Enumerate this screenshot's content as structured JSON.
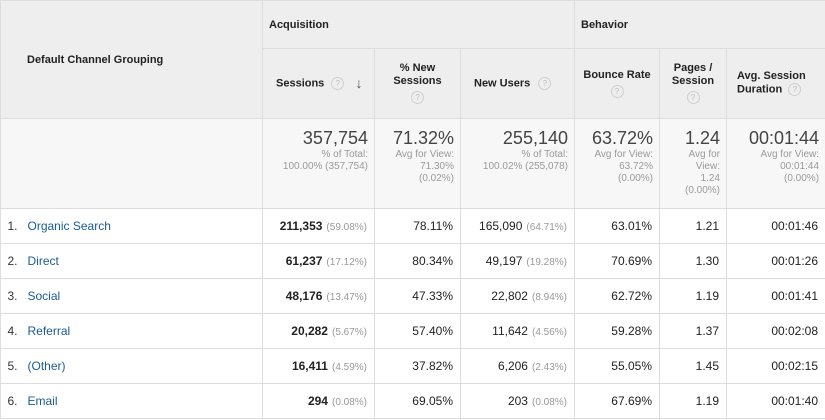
{
  "header": {
    "dimension": "Default Channel Grouping",
    "groups": {
      "acquisition": "Acquisition",
      "behavior": "Behavior"
    },
    "columns": {
      "sessions": "Sessions",
      "pct_new_sessions": "% New Sessions",
      "new_users": "New Users",
      "bounce_rate": "Bounce Rate",
      "pages_session": "Pages / Session",
      "avg_session_duration": "Avg. Session Duration"
    },
    "help_glyph": "?",
    "sort_arrow": "↓"
  },
  "totals": {
    "sessions": {
      "value": "357,754",
      "line1": "% of Total:",
      "line2": "100.00% (357,754)"
    },
    "pct_new_sessions": {
      "value": "71.32%",
      "line1": "Avg for View:",
      "line2": "71.30%",
      "line3": "(0.02%)"
    },
    "new_users": {
      "value": "255,140",
      "line1": "% of Total:",
      "line2": "100.02% (255,078)"
    },
    "bounce_rate": {
      "value": "63.72%",
      "line1": "Avg for View:",
      "line2": "63.72%",
      "line3": "(0.00%)"
    },
    "pages_session": {
      "value": "1.24",
      "line1": "Avg for",
      "line2": "View:",
      "line3": "1.24",
      "line4": "(0.00%)"
    },
    "avg_session_duration": {
      "value": "00:01:44",
      "line1": "Avg for View:",
      "line2": "00:01:44",
      "line3": "(0.00%)"
    }
  },
  "rows": [
    {
      "index": "1.",
      "channel": "Organic Search",
      "sessions": "211,353",
      "sessions_pct": "(59.08%)",
      "pct_new_sessions": "78.11%",
      "new_users": "165,090",
      "new_users_pct": "(64.71%)",
      "bounce_rate": "63.01%",
      "pages_session": "1.21",
      "avg_session_duration": "00:01:46"
    },
    {
      "index": "2.",
      "channel": "Direct",
      "sessions": "61,237",
      "sessions_pct": "(17.12%)",
      "pct_new_sessions": "80.34%",
      "new_users": "49,197",
      "new_users_pct": "(19.28%)",
      "bounce_rate": "70.69%",
      "pages_session": "1.30",
      "avg_session_duration": "00:01:26"
    },
    {
      "index": "3.",
      "channel": "Social",
      "sessions": "48,176",
      "sessions_pct": "(13.47%)",
      "pct_new_sessions": "47.33%",
      "new_users": "22,802",
      "new_users_pct": "(8.94%)",
      "bounce_rate": "62.72%",
      "pages_session": "1.19",
      "avg_session_duration": "00:01:41"
    },
    {
      "index": "4.",
      "channel": "Referral",
      "sessions": "20,282",
      "sessions_pct": "(5.67%)",
      "pct_new_sessions": "57.40%",
      "new_users": "11,642",
      "new_users_pct": "(4.56%)",
      "bounce_rate": "59.28%",
      "pages_session": "1.37",
      "avg_session_duration": "00:02:08"
    },
    {
      "index": "5.",
      "channel": "(Other)",
      "sessions": "16,411",
      "sessions_pct": "(4.59%)",
      "pct_new_sessions": "37.82%",
      "new_users": "6,206",
      "new_users_pct": "(2.43%)",
      "bounce_rate": "55.05%",
      "pages_session": "1.45",
      "avg_session_duration": "00:02:15"
    },
    {
      "index": "6.",
      "channel": "Email",
      "sessions": "294",
      "sessions_pct": "(0.08%)",
      "pct_new_sessions": "69.05%",
      "new_users": "203",
      "new_users_pct": "(0.08%)",
      "bounce_rate": "67.69%",
      "pages_session": "1.19",
      "avg_session_duration": "00:01:40"
    }
  ],
  "colors": {
    "header_bg": "#eeeeee",
    "totals_bg": "#f7f7f7",
    "link": "#1a5a96",
    "border": "#dddddd"
  }
}
